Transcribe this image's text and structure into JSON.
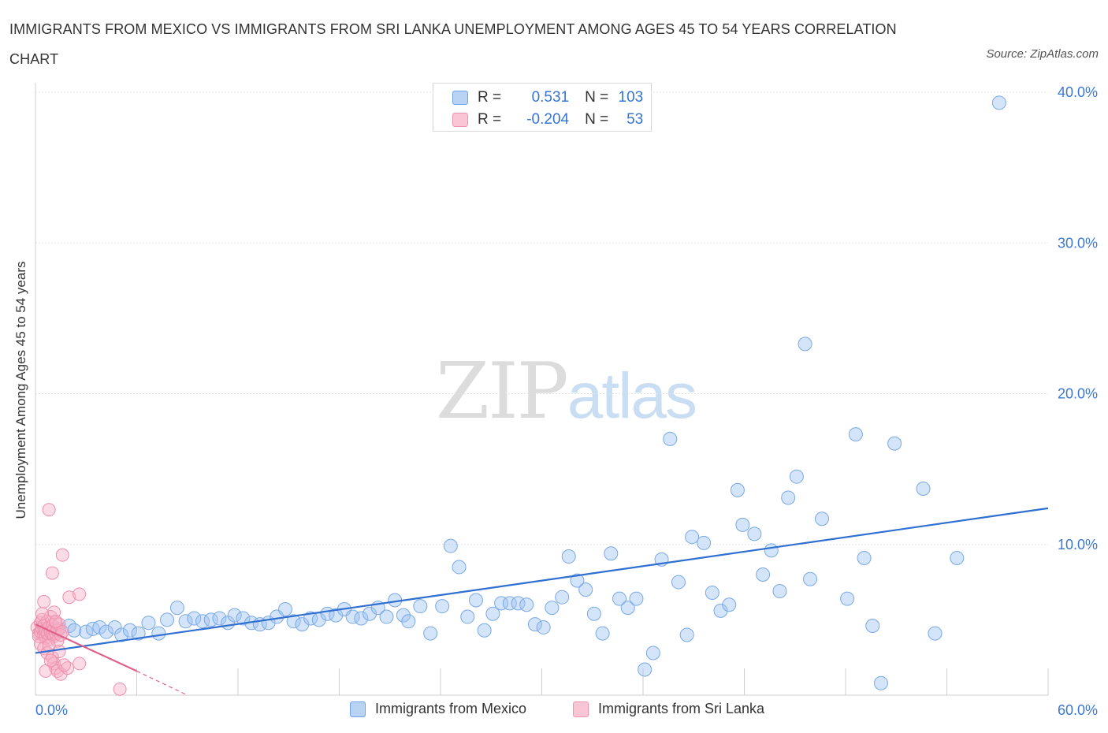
{
  "header": {
    "title": "IMMIGRANTS FROM MEXICO VS IMMIGRANTS FROM SRI LANKA UNEMPLOYMENT AMONG AGES 45 TO 54 YEARS CORRELATION CHART",
    "source": "Source: ZipAtlas.com"
  },
  "watermark": {
    "zip": "ZIP",
    "atlas": "atlas"
  },
  "legend": {
    "rows": [
      {
        "r_label": "R =",
        "r_value": "0.531",
        "n_label": "N =",
        "n_value": "103"
      },
      {
        "r_label": "R =",
        "r_value": "-0.204",
        "n_label": "N =",
        "n_value": "53"
      }
    ]
  },
  "chart_data": {
    "type": "scatter",
    "title": "IMMIGRANTS FROM MEXICO VS IMMIGRANTS FROM SRI LANKA UNEMPLOYMENT AMONG AGES 45 TO 54 YEARS CORRELATION CHART",
    "xlabel": "",
    "ylabel": "Unemployment Among Ages 45 to 54 years",
    "xlim": [
      0,
      60
    ],
    "ylim": [
      0,
      40
    ],
    "x_tick_labels": [
      "0.0%",
      "60.0%"
    ],
    "y_ticks": [
      10,
      20,
      30,
      40
    ],
    "y_tick_labels": [
      "10.0%",
      "20.0%",
      "30.0%",
      "40.0%"
    ],
    "grid": true,
    "legend_position": "bottom",
    "colors": {
      "mexico": "#5b9be6",
      "sri_lanka": "#ef8aa8",
      "mexico_line": "#2f6fd0",
      "sri_lanka_line": "#e0608a"
    },
    "series": [
      {
        "name": "Immigrants from Mexico",
        "r": 0.531,
        "n": 103,
        "trend": {
          "x": [
            0,
            60
          ],
          "y": [
            2.8,
            12.4
          ]
        },
        "points": [
          [
            0.5,
            4.3
          ],
          [
            0.9,
            4.1
          ],
          [
            1.4,
            4.4
          ],
          [
            2.0,
            4.6
          ],
          [
            2.3,
            4.3
          ],
          [
            3.0,
            4.2
          ],
          [
            3.4,
            4.4
          ],
          [
            3.8,
            4.5
          ],
          [
            4.2,
            4.2
          ],
          [
            4.7,
            4.5
          ],
          [
            5.1,
            4.0
          ],
          [
            5.6,
            4.3
          ],
          [
            6.1,
            4.1
          ],
          [
            6.7,
            4.8
          ],
          [
            7.3,
            4.1
          ],
          [
            7.8,
            5.0
          ],
          [
            8.4,
            5.8
          ],
          [
            8.9,
            4.9
          ],
          [
            9.4,
            5.1
          ],
          [
            9.9,
            4.9
          ],
          [
            10.4,
            5.0
          ],
          [
            10.9,
            5.1
          ],
          [
            11.4,
            4.8
          ],
          [
            11.8,
            5.3
          ],
          [
            12.3,
            5.1
          ],
          [
            12.8,
            4.8
          ],
          [
            13.3,
            4.7
          ],
          [
            13.8,
            4.8
          ],
          [
            14.3,
            5.2
          ],
          [
            14.8,
            5.7
          ],
          [
            15.3,
            4.9
          ],
          [
            15.8,
            4.7
          ],
          [
            16.3,
            5.1
          ],
          [
            16.8,
            5.0
          ],
          [
            17.3,
            5.4
          ],
          [
            17.8,
            5.3
          ],
          [
            18.3,
            5.7
          ],
          [
            18.8,
            5.2
          ],
          [
            19.3,
            5.1
          ],
          [
            19.8,
            5.4
          ],
          [
            20.3,
            5.8
          ],
          [
            20.8,
            5.2
          ],
          [
            21.3,
            6.3
          ],
          [
            21.8,
            5.3
          ],
          [
            22.1,
            4.9
          ],
          [
            22.8,
            5.9
          ],
          [
            23.4,
            4.1
          ],
          [
            24.1,
            5.9
          ],
          [
            24.6,
            9.9
          ],
          [
            25.1,
            8.5
          ],
          [
            25.6,
            5.2
          ],
          [
            26.1,
            6.3
          ],
          [
            26.6,
            4.3
          ],
          [
            27.1,
            5.4
          ],
          [
            27.6,
            6.1
          ],
          [
            28.1,
            6.1
          ],
          [
            28.6,
            6.1
          ],
          [
            29.1,
            6.0
          ],
          [
            29.6,
            4.7
          ],
          [
            30.1,
            4.5
          ],
          [
            30.6,
            5.8
          ],
          [
            31.2,
            6.5
          ],
          [
            31.6,
            9.2
          ],
          [
            32.1,
            7.6
          ],
          [
            32.6,
            7.0
          ],
          [
            33.1,
            5.4
          ],
          [
            33.6,
            4.1
          ],
          [
            34.1,
            9.4
          ],
          [
            34.6,
            6.4
          ],
          [
            35.1,
            5.8
          ],
          [
            35.6,
            6.4
          ],
          [
            36.1,
            1.7
          ],
          [
            36.6,
            2.8
          ],
          [
            37.1,
            9.0
          ],
          [
            37.6,
            17.0
          ],
          [
            38.1,
            7.5
          ],
          [
            38.6,
            4.0
          ],
          [
            38.9,
            10.5
          ],
          [
            39.6,
            10.1
          ],
          [
            40.1,
            6.8
          ],
          [
            40.6,
            5.6
          ],
          [
            41.1,
            6.0
          ],
          [
            41.6,
            13.6
          ],
          [
            41.9,
            11.3
          ],
          [
            42.6,
            10.7
          ],
          [
            43.1,
            8.0
          ],
          [
            43.6,
            9.6
          ],
          [
            44.1,
            6.9
          ],
          [
            44.6,
            13.1
          ],
          [
            45.1,
            14.5
          ],
          [
            45.6,
            23.3
          ],
          [
            45.9,
            7.7
          ],
          [
            46.6,
            11.7
          ],
          [
            48.1,
            6.4
          ],
          [
            48.6,
            17.3
          ],
          [
            49.1,
            9.1
          ],
          [
            49.6,
            4.6
          ],
          [
            50.1,
            0.8
          ],
          [
            50.9,
            16.7
          ],
          [
            52.6,
            13.7
          ],
          [
            53.3,
            4.1
          ],
          [
            54.6,
            9.1
          ],
          [
            57.1,
            39.3
          ]
        ]
      },
      {
        "name": "Immigrants from Sri Lanka",
        "r": -0.204,
        "n": 53,
        "trend": {
          "x": [
            0,
            6.0
          ],
          "y": [
            4.7,
            1.6
          ]
        },
        "trend_dashed": {
          "x": [
            6.0,
            9.0
          ],
          "y": [
            1.6,
            0.0
          ]
        },
        "points": [
          [
            0.1,
            4.5
          ],
          [
            0.2,
            4.1
          ],
          [
            0.2,
            3.9
          ],
          [
            0.3,
            4.8
          ],
          [
            0.3,
            4.2
          ],
          [
            0.4,
            5.0
          ],
          [
            0.4,
            4.4
          ],
          [
            0.5,
            4.0
          ],
          [
            0.5,
            4.6
          ],
          [
            0.6,
            3.8
          ],
          [
            0.6,
            4.3
          ],
          [
            0.7,
            4.9
          ],
          [
            0.7,
            4.1
          ],
          [
            0.8,
            4.5
          ],
          [
            0.8,
            3.7
          ],
          [
            0.9,
            4.2
          ],
          [
            0.9,
            5.2
          ],
          [
            1.0,
            4.0
          ],
          [
            1.0,
            4.6
          ],
          [
            1.1,
            3.9
          ],
          [
            1.1,
            4.4
          ],
          [
            1.2,
            4.8
          ],
          [
            1.2,
            4.1
          ],
          [
            1.3,
            4.3
          ],
          [
            1.3,
            3.6
          ],
          [
            1.4,
            4.7
          ],
          [
            1.5,
            4.0
          ],
          [
            1.6,
            4.2
          ],
          [
            0.3,
            3.4
          ],
          [
            0.5,
            3.1
          ],
          [
            0.7,
            2.8
          ],
          [
            0.8,
            3.3
          ],
          [
            1.0,
            2.5
          ],
          [
            1.1,
            2.1
          ],
          [
            1.2,
            1.8
          ],
          [
            1.3,
            1.6
          ],
          [
            1.4,
            2.9
          ],
          [
            1.5,
            1.4
          ],
          [
            0.6,
            1.6
          ],
          [
            1.9,
            1.8
          ],
          [
            2.6,
            2.1
          ],
          [
            0.5,
            6.2
          ],
          [
            1.0,
            8.1
          ],
          [
            1.6,
            9.3
          ],
          [
            2.0,
            6.5
          ],
          [
            2.6,
            6.7
          ],
          [
            0.8,
            12.3
          ],
          [
            1.1,
            5.5
          ],
          [
            0.4,
            5.4
          ],
          [
            0.9,
            2.3
          ],
          [
            1.7,
            2.0
          ],
          [
            5.0,
            0.4
          ],
          [
            1.2,
            4.9
          ]
        ]
      }
    ]
  },
  "bottom_legend": {
    "items": [
      {
        "label": "Immigrants from Mexico"
      },
      {
        "label": "Immigrants from Sri Lanka"
      }
    ]
  }
}
